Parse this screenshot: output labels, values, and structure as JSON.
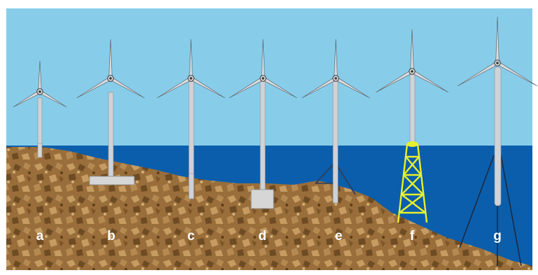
{
  "colors": {
    "sky": "#87cdea",
    "sea": "#0b5eab",
    "seabed": "#9a6e3a",
    "seabed_dark": "#6e4b22",
    "seabed_light": "#c59c61",
    "tower": "#cfd2d6",
    "tower_edge": "#8d9196",
    "lattice": "#e8f02a",
    "mooring": "#1a2b45",
    "foundation": "#d6d6d6"
  },
  "turbines": [
    {
      "label": "a",
      "foundation": "monopile-shore-icon"
    },
    {
      "label": "b",
      "foundation": "gravity-slab-icon"
    },
    {
      "label": "c",
      "foundation": "monopile-icon"
    },
    {
      "label": "d",
      "foundation": "suction-caisson-icon"
    },
    {
      "label": "e",
      "foundation": "tripod-icon"
    },
    {
      "label": "f",
      "foundation": "jacket-lattice-icon"
    },
    {
      "label": "g",
      "foundation": "floating-tension-leg-icon"
    }
  ]
}
